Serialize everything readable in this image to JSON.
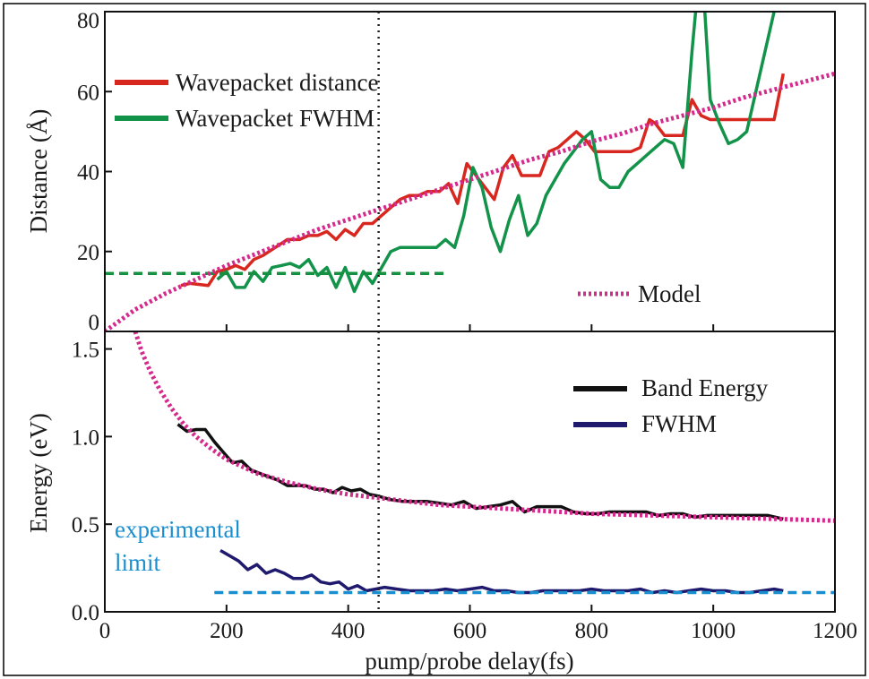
{
  "x_axis": {
    "label": "pump/probe delay(fs)",
    "range": [
      0,
      1200
    ],
    "ticks": [
      0,
      200,
      400,
      600,
      800,
      1000,
      1200
    ],
    "marker_line": 450
  },
  "chart_data": [
    {
      "type": "line",
      "panel": "top",
      "ylabel": "Distance (Å)",
      "xlim": [
        0,
        1200
      ],
      "ylim": [
        0,
        80
      ],
      "yticks": [
        0,
        20,
        40,
        60,
        80
      ],
      "legend_placement": "top-left",
      "series": [
        {
          "name": "Wavepacket distance",
          "color": "#d8271f",
          "style": "solid",
          "x": [
            125,
            140,
            170,
            185,
            200,
            215,
            230,
            245,
            260,
            280,
            300,
            320,
            335,
            350,
            365,
            380,
            395,
            410,
            425,
            440,
            455,
            470,
            485,
            500,
            515,
            530,
            550,
            565,
            580,
            595,
            610,
            625,
            640,
            655,
            670,
            685,
            700,
            715,
            730,
            745,
            760,
            775,
            790,
            805,
            820,
            835,
            850,
            865,
            880,
            895,
            905,
            920,
            935,
            950,
            965,
            980,
            995,
            1010,
            1025,
            1040,
            1055,
            1070,
            1085,
            1100,
            1115
          ],
          "y": [
            11.5,
            12,
            11.5,
            15,
            15.5,
            16.5,
            15.5,
            18,
            19,
            21,
            23,
            23,
            24,
            24,
            25,
            23,
            25.5,
            24,
            27,
            27,
            29,
            31,
            33,
            34,
            34,
            35,
            35,
            37,
            32,
            42,
            39,
            36,
            33,
            41,
            44,
            39,
            39,
            39,
            45,
            46,
            48,
            50,
            48,
            45,
            45,
            45,
            45,
            45,
            46,
            53,
            52,
            49,
            49,
            49,
            58,
            54,
            53,
            53,
            53,
            53,
            53,
            53,
            53,
            53,
            64.5
          ]
        },
        {
          "name": "Wavepacket FWHM",
          "color": "#13934a",
          "style": "solid",
          "x": [
            185,
            200,
            215,
            230,
            245,
            260,
            275,
            290,
            305,
            320,
            335,
            350,
            365,
            380,
            395,
            410,
            425,
            440,
            455,
            470,
            485,
            500,
            515,
            530,
            545,
            560,
            575,
            590,
            605,
            620,
            635,
            650,
            665,
            680,
            695,
            710,
            725,
            740,
            755,
            770,
            785,
            800,
            815,
            830,
            845,
            860,
            875,
            890,
            905,
            920,
            935,
            950,
            965,
            980,
            995,
            1010,
            1025,
            1040,
            1055,
            1070,
            1085,
            1100,
            1115
          ],
          "y": [
            13,
            15,
            11,
            11,
            15,
            12.5,
            16,
            16.5,
            17,
            16,
            18,
            14,
            16,
            11,
            16,
            10,
            15,
            12,
            16,
            20,
            21,
            21,
            21,
            21,
            21,
            23,
            21,
            29,
            41,
            36,
            26,
            20,
            28,
            34,
            24,
            27,
            34,
            38,
            42,
            45,
            48,
            50,
            38,
            36,
            36,
            40,
            42,
            44,
            46,
            48,
            47,
            41,
            70,
            95,
            58,
            52,
            47,
            48,
            50,
            60,
            70,
            80,
            85
          ]
        },
        {
          "name": "",
          "color": "#15903f",
          "style": "dashed",
          "x": [
            0,
            565
          ],
          "y": [
            14.5,
            14.5
          ]
        },
        {
          "name": "Model",
          "color": "#d42a8c",
          "style": "dotted",
          "x": [
            0,
            50,
            100,
            150,
            200,
            250,
            300,
            350,
            400,
            450,
            500,
            550,
            600,
            650,
            700,
            750,
            800,
            850,
            900,
            950,
            1000,
            1050,
            1100,
            1150,
            1200
          ],
          "y": [
            0,
            5.5,
            9.5,
            13,
            16.5,
            19.5,
            22.5,
            25.5,
            28,
            30.5,
            33,
            35.5,
            38,
            40.5,
            43,
            45,
            47.5,
            49.5,
            52,
            54,
            56,
            58.5,
            60.5,
            62.5,
            64.5
          ]
        }
      ]
    },
    {
      "type": "line",
      "panel": "bottom",
      "ylabel": "Energy (eV)",
      "xlim": [
        0,
        1200
      ],
      "ylim": [
        0,
        1.6
      ],
      "yticks": [
        0.0,
        0.5,
        1.0,
        1.5
      ],
      "ytick_labels": [
        "0.0",
        "0.5",
        "1.0",
        "1.5"
      ],
      "legend_placement": "top-right",
      "annotation": {
        "lines": [
          "experimental",
          "limit"
        ],
        "color": "#1a8fd0"
      },
      "series": [
        {
          "name": "Band Energy",
          "color": "#111111",
          "style": "solid",
          "x": [
            120,
            135,
            150,
            165,
            180,
            195,
            210,
            225,
            240,
            255,
            270,
            285,
            300,
            315,
            330,
            345,
            360,
            375,
            390,
            405,
            420,
            435,
            450,
            470,
            490,
            510,
            530,
            550,
            570,
            590,
            610,
            630,
            650,
            670,
            690,
            710,
            730,
            750,
            770,
            790,
            810,
            830,
            850,
            870,
            890,
            910,
            930,
            950,
            970,
            990,
            1010,
            1030,
            1050,
            1070,
            1090,
            1115
          ],
          "y": [
            1.07,
            1.03,
            1.04,
            1.04,
            0.97,
            0.91,
            0.85,
            0.86,
            0.81,
            0.79,
            0.77,
            0.75,
            0.72,
            0.72,
            0.72,
            0.7,
            0.7,
            0.68,
            0.71,
            0.69,
            0.7,
            0.67,
            0.66,
            0.64,
            0.63,
            0.63,
            0.63,
            0.62,
            0.61,
            0.63,
            0.59,
            0.6,
            0.61,
            0.63,
            0.57,
            0.6,
            0.6,
            0.6,
            0.57,
            0.56,
            0.56,
            0.57,
            0.57,
            0.57,
            0.57,
            0.55,
            0.56,
            0.56,
            0.54,
            0.55,
            0.55,
            0.55,
            0.55,
            0.55,
            0.55,
            0.53
          ]
        },
        {
          "name": "FWHM",
          "color": "#1f1a6e",
          "style": "solid",
          "x": [
            190,
            205,
            220,
            235,
            250,
            265,
            280,
            295,
            310,
            325,
            340,
            355,
            370,
            385,
            400,
            415,
            430,
            445,
            460,
            480,
            500,
            520,
            540,
            560,
            580,
            600,
            620,
            640,
            660,
            680,
            700,
            720,
            740,
            760,
            780,
            800,
            820,
            840,
            860,
            880,
            900,
            920,
            940,
            960,
            980,
            1000,
            1020,
            1040,
            1060,
            1080,
            1100,
            1115
          ],
          "y": [
            0.35,
            0.32,
            0.29,
            0.24,
            0.27,
            0.22,
            0.24,
            0.22,
            0.19,
            0.19,
            0.21,
            0.17,
            0.16,
            0.17,
            0.13,
            0.15,
            0.12,
            0.13,
            0.14,
            0.13,
            0.12,
            0.12,
            0.12,
            0.13,
            0.12,
            0.13,
            0.14,
            0.12,
            0.12,
            0.11,
            0.11,
            0.12,
            0.12,
            0.12,
            0.12,
            0.13,
            0.12,
            0.12,
            0.12,
            0.13,
            0.11,
            0.12,
            0.11,
            0.12,
            0.13,
            0.12,
            0.12,
            0.11,
            0.11,
            0.12,
            0.13,
            0.12
          ]
        },
        {
          "name": "",
          "color": "#1a8fd0",
          "style": "dashed",
          "x": [
            180,
            1200
          ],
          "y": [
            0.11,
            0.11
          ]
        },
        {
          "name": "",
          "color": "#d42a8c",
          "style": "dotted",
          "x": [
            50,
            60,
            75,
            90,
            110,
            130,
            150,
            175,
            200,
            225,
            250,
            300,
            350,
            400,
            450,
            500,
            550,
            600,
            700,
            800,
            900,
            1000,
            1100,
            1200
          ],
          "y": [
            1.6,
            1.49,
            1.37,
            1.27,
            1.16,
            1.07,
            1.0,
            0.93,
            0.87,
            0.83,
            0.79,
            0.74,
            0.7,
            0.67,
            0.65,
            0.63,
            0.61,
            0.6,
            0.58,
            0.56,
            0.55,
            0.54,
            0.53,
            0.52
          ]
        }
      ]
    }
  ]
}
